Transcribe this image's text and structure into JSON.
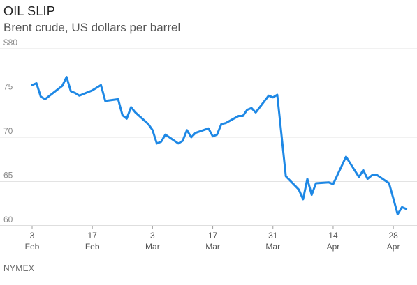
{
  "header": {
    "title": "OIL SLIP",
    "subtitle": "Brent crude, US dollars per barrel"
  },
  "footer": {
    "source": "NYMEX"
  },
  "chart_data": {
    "type": "line",
    "title": "OIL SLIP",
    "subtitle": "Brent crude, US dollars per barrel",
    "xlabel": "",
    "ylabel": "",
    "ylim": [
      60,
      80
    ],
    "y_ticks": [
      {
        "value": 80,
        "label": "$80"
      },
      {
        "value": 75,
        "label": "75"
      },
      {
        "value": 70,
        "label": "70"
      },
      {
        "value": 65,
        "label": "65"
      },
      {
        "value": 60,
        "label": "60"
      }
    ],
    "x_ticks": [
      {
        "day": 0,
        "top": "3",
        "bottom": "Feb"
      },
      {
        "day": 14,
        "top": "17",
        "bottom": "Feb"
      },
      {
        "day": 28,
        "top": "3",
        "bottom": "Mar"
      },
      {
        "day": 42,
        "top": "17",
        "bottom": "Mar"
      },
      {
        "day": 56,
        "top": "31",
        "bottom": "Mar"
      },
      {
        "day": 70,
        "top": "14",
        "bottom": "Apr"
      },
      {
        "day": 84,
        "top": "28",
        "bottom": "Apr"
      }
    ],
    "x_domain": [
      0,
      89.5
    ],
    "grid": true,
    "color": "#1e88e5",
    "series": [
      {
        "name": "",
        "points": [
          [
            0,
            75.9
          ],
          [
            1,
            76.1
          ],
          [
            2,
            74.6
          ],
          [
            3,
            74.3
          ],
          [
            7,
            75.8
          ],
          [
            8,
            76.8
          ],
          [
            9,
            75.2
          ],
          [
            10,
            75.0
          ],
          [
            11,
            74.7
          ],
          [
            14,
            75.3
          ],
          [
            16,
            75.9
          ],
          [
            17,
            74.1
          ],
          [
            20,
            74.3
          ],
          [
            21,
            72.5
          ],
          [
            22,
            72.1
          ],
          [
            23,
            73.4
          ],
          [
            24,
            72.8
          ],
          [
            27,
            71.5
          ],
          [
            28,
            70.8
          ],
          [
            29,
            69.3
          ],
          [
            30,
            69.5
          ],
          [
            31,
            70.3
          ],
          [
            34,
            69.3
          ],
          [
            35,
            69.6
          ],
          [
            36,
            70.8
          ],
          [
            37,
            70.0
          ],
          [
            38,
            70.5
          ],
          [
            41,
            71.0
          ],
          [
            42,
            70.1
          ],
          [
            43,
            70.3
          ],
          [
            44,
            71.5
          ],
          [
            45,
            71.6
          ],
          [
            48,
            72.4
          ],
          [
            49,
            72.4
          ],
          [
            50,
            73.1
          ],
          [
            51,
            73.3
          ],
          [
            52,
            72.8
          ],
          [
            55,
            74.7
          ],
          [
            56,
            74.5
          ],
          [
            57,
            74.8
          ],
          [
            59,
            65.6
          ],
          [
            62,
            64.1
          ],
          [
            63,
            63.0
          ],
          [
            64,
            65.3
          ],
          [
            65,
            63.5
          ],
          [
            66,
            64.8
          ],
          [
            69,
            64.9
          ],
          [
            70,
            64.7
          ],
          [
            73,
            67.8
          ],
          [
            76,
            65.5
          ],
          [
            77,
            66.3
          ],
          [
            78,
            65.3
          ],
          [
            79,
            65.7
          ],
          [
            80,
            65.8
          ],
          [
            83,
            64.8
          ],
          [
            84,
            63.1
          ],
          [
            85,
            61.3
          ],
          [
            86,
            62.1
          ],
          [
            87,
            61.9
          ]
        ]
      }
    ]
  }
}
